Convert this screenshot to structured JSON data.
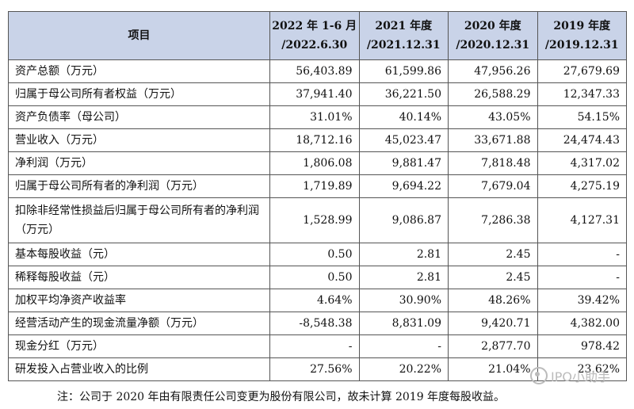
{
  "table": {
    "headers": [
      {
        "line1": "项目",
        "line2": ""
      },
      {
        "line1": "2022 年 1-6 月",
        "line2": "/2022.6.30"
      },
      {
        "line1": "2021 年度",
        "line2": "/2021.12.31"
      },
      {
        "line1": "2020 年度",
        "line2": "/2020.12.31"
      },
      {
        "line1": "2019 年度",
        "line2": "/2019.12.31"
      }
    ],
    "rows": [
      {
        "label": "资产总额（万元）",
        "values": [
          "56,403.89",
          "61,599.86",
          "47,956.26",
          "27,679.69"
        ]
      },
      {
        "label": "归属于母公司所有者权益（万元）",
        "values": [
          "37,941.40",
          "36,221.50",
          "26,588.29",
          "12,347.33"
        ]
      },
      {
        "label": "资产负债率（母公司）",
        "values": [
          "31.01%",
          "40.14%",
          "43.05%",
          "54.15%"
        ]
      },
      {
        "label": "营业收入（万元）",
        "values": [
          "18,712.16",
          "45,023.47",
          "33,671.88",
          "24,474.43"
        ]
      },
      {
        "label": "净利润（万元）",
        "values": [
          "1,806.08",
          "9,881.47",
          "7,818.48",
          "4,317.02"
        ]
      },
      {
        "label": "归属于母公司所有者的净利润（万元）",
        "values": [
          "1,719.89",
          "9,694.22",
          "7,679.04",
          "4,275.19"
        ]
      },
      {
        "label": "扣除非经常性损益后归属于母公司所有者的净利润（万元）",
        "values": [
          "1,528.99",
          "9,086.87",
          "7,286.38",
          "4,127.31"
        ]
      },
      {
        "label": "基本每股收益（元）",
        "values": [
          "0.50",
          "2.81",
          "2.45",
          "-"
        ]
      },
      {
        "label": "稀释每股收益（元）",
        "values": [
          "0.50",
          "2.81",
          "2.45",
          "-"
        ]
      },
      {
        "label": "加权平均净资产收益率",
        "values": [
          "4.64%",
          "30.90%",
          "48.26%",
          "39.42%"
        ]
      },
      {
        "label": "经营活动产生的现金流量净额（万元）",
        "values": [
          "-8,548.38",
          "8,831.09",
          "9,420.71",
          "4,382.00"
        ]
      },
      {
        "label": "现金分红（万元）",
        "values": [
          "-",
          "-",
          "2,877.70",
          "978.42"
        ]
      },
      {
        "label": "研发投入占营业收入的比例",
        "values": [
          "27.56%",
          "20.22%",
          "21.04%",
          "23.62%"
        ]
      }
    ]
  },
  "note": "注：公司于 2020 年由有限责任公司变更为股份有限公司，故未计算 2019 年度每股收益。",
  "watermark": "IPO小助手",
  "colors": {
    "header_bg": "#c9d3e8",
    "border": "#555555"
  }
}
